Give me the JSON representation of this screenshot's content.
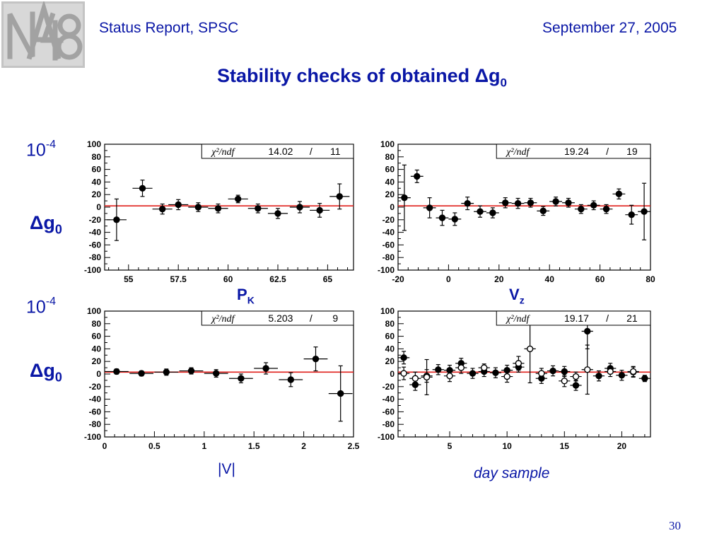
{
  "header": {
    "left": "Status Report, SPSC",
    "right": "September 27, 2005",
    "logo_text": "NA48"
  },
  "title": {
    "main": "Stability checks of obtained ",
    "symbol": "Δ",
    "var": "g",
    "sub": "0"
  },
  "labels": {
    "unit_base": "10",
    "unit_exp": "-4",
    "dg_symbol": "Δg",
    "dg_sub": "0",
    "pk_main": "P",
    "pk_sub": "K",
    "vz_main": "V",
    "vz_sub": "z",
    "v_label": "|V|",
    "day_label": "day sample"
  },
  "page_number": "30",
  "colors": {
    "text": "#0a17a6",
    "fit_line": "#e0201c",
    "points": "#000000"
  },
  "chart_data": [
    {
      "type": "scatter",
      "xlim": [
        53.8,
        66.3
      ],
      "ylim": [
        -100,
        100
      ],
      "xticks": [
        55,
        57.5,
        60,
        62.5,
        65
      ],
      "xtick_labels": [
        "55",
        "57.5",
        "60",
        "62.5",
        "65"
      ],
      "ymajor": [
        -100,
        -80,
        -60,
        -40,
        -20,
        0,
        20,
        40,
        60,
        80,
        100
      ],
      "fit_value": 2,
      "stats_label": "χ²/ndf",
      "stats_value": "14.02",
      "stats_ndf": "11",
      "series": [
        {
          "marker": "filled",
          "points": [
            {
              "x": 54.4,
              "y": -20,
              "xerr": 0.5,
              "yerr": 33
            },
            {
              "x": 55.7,
              "y": 30,
              "xerr": 0.5,
              "yerr": 13
            },
            {
              "x": 56.7,
              "y": -3,
              "xerr": 0.5,
              "yerr": 8
            },
            {
              "x": 57.5,
              "y": 4,
              "xerr": 0.5,
              "yerr": 8
            },
            {
              "x": 58.5,
              "y": 0,
              "xerr": 0.5,
              "yerr": 7
            },
            {
              "x": 59.5,
              "y": -2,
              "xerr": 0.5,
              "yerr": 7
            },
            {
              "x": 60.5,
              "y": 13,
              "xerr": 0.5,
              "yerr": 6
            },
            {
              "x": 61.5,
              "y": -2,
              "xerr": 0.5,
              "yerr": 7
            },
            {
              "x": 62.5,
              "y": -10,
              "xerr": 0.5,
              "yerr": 8
            },
            {
              "x": 63.6,
              "y": 0,
              "xerr": 0.5,
              "yerr": 9
            },
            {
              "x": 64.6,
              "y": -5,
              "xerr": 0.5,
              "yerr": 11
            },
            {
              "x": 65.6,
              "y": 17,
              "xerr": 0.5,
              "yerr": 20
            }
          ]
        }
      ]
    },
    {
      "type": "scatter",
      "xlim": [
        -20,
        80
      ],
      "ylim": [
        -100,
        100
      ],
      "xticks": [
        -20,
        0,
        20,
        40,
        60,
        80
      ],
      "xtick_labels": [
        "-20",
        "0",
        "20",
        "40",
        "60",
        "80"
      ],
      "ymajor": [
        -100,
        -80,
        -60,
        -40,
        -20,
        0,
        20,
        40,
        60,
        80,
        100
      ],
      "fit_value": 2,
      "stats_label": "χ²/ndf",
      "stats_value": "19.24",
      "stats_ndf": "19",
      "series": [
        {
          "marker": "filled",
          "points": [
            {
              "x": -17.5,
              "y": 15,
              "xerr": 2.5,
              "yerr": 52
            },
            {
              "x": -12.5,
              "y": 49,
              "xerr": 2.5,
              "yerr": 10
            },
            {
              "x": -7.5,
              "y": -1,
              "xerr": 2.5,
              "yerr": 16
            },
            {
              "x": -2.5,
              "y": -17,
              "xerr": 2.5,
              "yerr": 12
            },
            {
              "x": 2.5,
              "y": -19,
              "xerr": 2.5,
              "yerr": 10
            },
            {
              "x": 7.5,
              "y": 6,
              "xerr": 2.5,
              "yerr": 10
            },
            {
              "x": 12.5,
              "y": -7,
              "xerr": 2.5,
              "yerr": 9
            },
            {
              "x": 17.5,
              "y": -9,
              "xerr": 2.5,
              "yerr": 8
            },
            {
              "x": 22.5,
              "y": 7,
              "xerr": 2.5,
              "yerr": 8
            },
            {
              "x": 27.5,
              "y": 6,
              "xerr": 2.5,
              "yerr": 8
            },
            {
              "x": 32.5,
              "y": 7,
              "xerr": 2.5,
              "yerr": 7
            },
            {
              "x": 37.5,
              "y": -6,
              "xerr": 2.5,
              "yerr": 7
            },
            {
              "x": 42.5,
              "y": 9,
              "xerr": 2.5,
              "yerr": 7
            },
            {
              "x": 47.5,
              "y": 7,
              "xerr": 2.5,
              "yerr": 7
            },
            {
              "x": 52.5,
              "y": -3,
              "xerr": 2.5,
              "yerr": 7
            },
            {
              "x": 57.5,
              "y": 3,
              "xerr": 2.5,
              "yerr": 7
            },
            {
              "x": 62.5,
              "y": -3,
              "xerr": 2.5,
              "yerr": 7
            },
            {
              "x": 67.5,
              "y": 21,
              "xerr": 2.5,
              "yerr": 8
            },
            {
              "x": 72.5,
              "y": -12,
              "xerr": 2.5,
              "yerr": 15
            },
            {
              "x": 77.5,
              "y": -7,
              "xerr": 2.5,
              "yerr": 45
            }
          ]
        }
      ]
    },
    {
      "type": "scatter",
      "xlim": [
        0,
        2.5
      ],
      "ylim": [
        -100,
        100
      ],
      "xticks": [
        0,
        0.5,
        1,
        1.5,
        2,
        2.5
      ],
      "xtick_labels": [
        "0",
        "0.5",
        "1",
        "1.5",
        "2",
        "2.5"
      ],
      "ymajor": [
        -100,
        -80,
        -60,
        -40,
        -20,
        0,
        20,
        40,
        60,
        80,
        100
      ],
      "fit_value": 3,
      "stats_label": "χ²/ndf",
      "stats_value": "5.203",
      "stats_ndf": "9",
      "series": [
        {
          "marker": "filled",
          "points": [
            {
              "x": 0.12,
              "y": 4,
              "xerr": 0.12,
              "yerr": 4
            },
            {
              "x": 0.37,
              "y": 1,
              "xerr": 0.12,
              "yerr": 4
            },
            {
              "x": 0.62,
              "y": 3,
              "xerr": 0.12,
              "yerr": 5
            },
            {
              "x": 0.87,
              "y": 5,
              "xerr": 0.12,
              "yerr": 5
            },
            {
              "x": 1.12,
              "y": 1,
              "xerr": 0.12,
              "yerr": 6
            },
            {
              "x": 1.37,
              "y": -7,
              "xerr": 0.12,
              "yerr": 7
            },
            {
              "x": 1.62,
              "y": 9,
              "xerr": 0.12,
              "yerr": 9
            },
            {
              "x": 1.87,
              "y": -9,
              "xerr": 0.12,
              "yerr": 11
            },
            {
              "x": 2.12,
              "y": 24,
              "xerr": 0.12,
              "yerr": 19
            },
            {
              "x": 2.37,
              "y": -31,
              "xerr": 0.12,
              "yerr": 44
            }
          ]
        }
      ]
    },
    {
      "type": "scatter",
      "xlim": [
        0.5,
        22.5
      ],
      "ylim": [
        -100,
        100
      ],
      "xticks": [
        5,
        10,
        15,
        20
      ],
      "xtick_labels": [
        "5",
        "10",
        "15",
        "20"
      ],
      "ymajor": [
        -100,
        -80,
        -60,
        -40,
        -20,
        0,
        20,
        40,
        60,
        80,
        100
      ],
      "fit_value": 3,
      "stats_label": "χ²/ndf",
      "stats_value": "19.17",
      "stats_ndf": "21",
      "series": [
        {
          "marker": "filled",
          "points": [
            {
              "x": 1,
              "y": 26,
              "xerr": 0.5,
              "yerr": 10
            },
            {
              "x": 2,
              "y": -17,
              "xerr": 0.5,
              "yerr": 9
            },
            {
              "x": 3,
              "y": -3,
              "xerr": 0.5,
              "yerr": 10
            },
            {
              "x": 4,
              "y": 7,
              "xerr": 0.5,
              "yerr": 8
            },
            {
              "x": 5,
              "y": 6,
              "xerr": 0.5,
              "yerr": 8
            },
            {
              "x": 6,
              "y": 17,
              "xerr": 0.5,
              "yerr": 8
            },
            {
              "x": 7,
              "y": 1,
              "xerr": 0.5,
              "yerr": 8
            },
            {
              "x": 8,
              "y": 4,
              "xerr": 0.5,
              "yerr": 8
            },
            {
              "x": 9,
              "y": 2,
              "xerr": 0.5,
              "yerr": 8
            },
            {
              "x": 10,
              "y": 6,
              "xerr": 0.5,
              "yerr": 8
            },
            {
              "x": 11,
              "y": 11,
              "xerr": 0.5,
              "yerr": 8
            },
            {
              "x": 13,
              "y": -7,
              "xerr": 0.5,
              "yerr": 8
            },
            {
              "x": 14,
              "y": 5,
              "xerr": 0.5,
              "yerr": 8
            },
            {
              "x": 15,
              "y": 4,
              "xerr": 0.5,
              "yerr": 8
            },
            {
              "x": 16,
              "y": -18,
              "xerr": 0.5,
              "yerr": 8
            },
            {
              "x": 17,
              "y": 68,
              "xerr": 0.5,
              "yerr": 28
            },
            {
              "x": 18,
              "y": -3,
              "xerr": 0.5,
              "yerr": 8
            },
            {
              "x": 19,
              "y": 9,
              "xerr": 0.5,
              "yerr": 8
            },
            {
              "x": 20,
              "y": -2,
              "xerr": 0.5,
              "yerr": 8
            },
            {
              "x": 21,
              "y": 3,
              "xerr": 0.5,
              "yerr": 8
            },
            {
              "x": 22,
              "y": -7,
              "xerr": 0.5,
              "yerr": 5
            }
          ]
        },
        {
          "marker": "open",
          "points": [
            {
              "x": 1,
              "y": 1,
              "xerr": 0.5,
              "yerr": 10
            },
            {
              "x": 2,
              "y": -7,
              "xerr": 0.5,
              "yerr": 10
            },
            {
              "x": 3,
              "y": -5,
              "xerr": 0.5,
              "yerr": 28
            },
            {
              "x": 5,
              "y": -3,
              "xerr": 0.5,
              "yerr": 9
            },
            {
              "x": 6,
              "y": 10,
              "xerr": 0.5,
              "yerr": 9
            },
            {
              "x": 8,
              "y": 10,
              "xerr": 0.5,
              "yerr": 6
            },
            {
              "x": 10,
              "y": -4,
              "xerr": 0.5,
              "yerr": 9
            },
            {
              "x": 11,
              "y": 17,
              "xerr": 0.5,
              "yerr": 11
            },
            {
              "x": 12,
              "y": 40,
              "xerr": 0.5,
              "yerr": 54
            },
            {
              "x": 13,
              "y": 1,
              "xerr": 0.5,
              "yerr": 8
            },
            {
              "x": 15,
              "y": -11,
              "xerr": 0.5,
              "yerr": 9
            },
            {
              "x": 16,
              "y": -4,
              "xerr": 0.5,
              "yerr": 7
            },
            {
              "x": 17,
              "y": 7,
              "xerr": 0.5,
              "yerr": 39
            },
            {
              "x": 19,
              "y": 4,
              "xerr": 0.5,
              "yerr": 8
            },
            {
              "x": 21,
              "y": 4,
              "xerr": 0.5,
              "yerr": 8
            }
          ]
        }
      ]
    }
  ]
}
